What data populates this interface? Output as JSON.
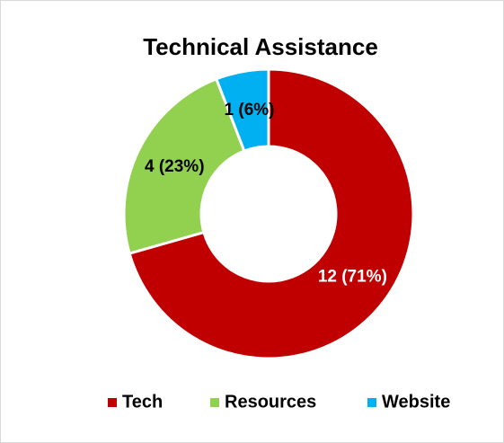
{
  "chart_data": {
    "type": "donut",
    "title": "Technical Assistance",
    "categories": [
      "Tech",
      "Resources",
      "Website"
    ],
    "values": [
      12,
      4,
      1
    ],
    "value_labels": [
      "12 (71%)",
      "4 (23%)",
      "1 (6%)"
    ],
    "colors": [
      "#c00000",
      "#92d050",
      "#00b0f0"
    ],
    "legend": "bottom"
  }
}
